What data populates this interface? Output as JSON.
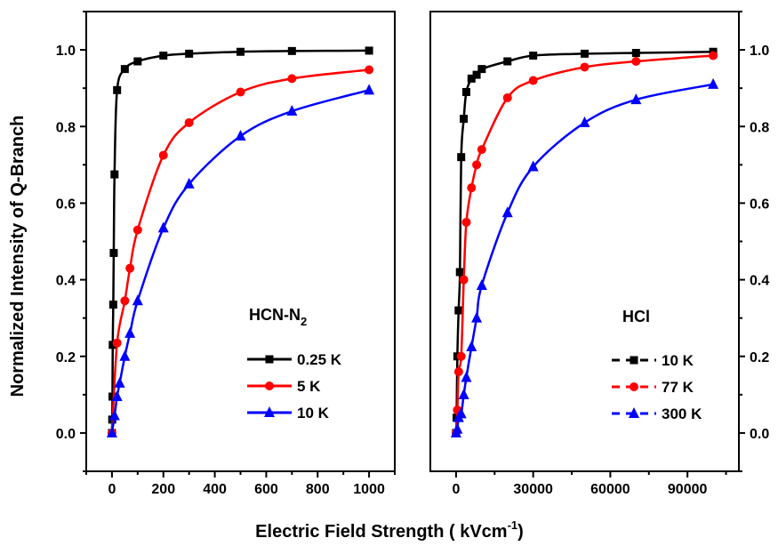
{
  "chart_data": [
    {
      "type": "line",
      "panel_label": "HCN-N",
      "panel_label_sub": "2",
      "xlabel": "",
      "ylabel": "Normalized Intensity of Q-Branch",
      "xlim": [
        -100,
        1100
      ],
      "ylim": [
        -0.1,
        1.1
      ],
      "x_ticks": [
        0,
        200,
        400,
        600,
        800,
        1000
      ],
      "x_tick_labels": [
        "0",
        "200",
        "400",
        "600",
        "800",
        "1000"
      ],
      "y_ticks": [
        0.0,
        0.2,
        0.4,
        0.6,
        0.8,
        1.0
      ],
      "y_tick_labels": [
        "0.0",
        "0.2",
        "0.4",
        "0.6",
        "0.8",
        "1.0"
      ],
      "legend_position": "lower-right",
      "series": [
        {
          "name": "0.25 K",
          "color": "#000000",
          "marker": "square",
          "line": "solid",
          "x": [
            0,
            1,
            2,
            3,
            5,
            7,
            10,
            20,
            50,
            100,
            200,
            300,
            500,
            700,
            1000
          ],
          "y": [
            0.0,
            0.035,
            0.095,
            0.23,
            0.335,
            0.47,
            0.675,
            0.895,
            0.95,
            0.97,
            0.985,
            0.99,
            0.995,
            0.997,
            0.998
          ]
        },
        {
          "name": "5 K",
          "color": "#ff0000",
          "marker": "circle",
          "line": "solid",
          "x": [
            0,
            20,
            50,
            70,
            100,
            200,
            300,
            500,
            700,
            1000
          ],
          "y": [
            0.0,
            0.235,
            0.345,
            0.43,
            0.53,
            0.725,
            0.81,
            0.89,
            0.925,
            0.948
          ]
        },
        {
          "name": "10 K",
          "color": "#0000ff",
          "marker": "triangle",
          "line": "solid",
          "x": [
            0,
            10,
            20,
            30,
            50,
            70,
            100,
            200,
            300,
            500,
            700,
            1000
          ],
          "y": [
            0.0,
            0.045,
            0.095,
            0.13,
            0.2,
            0.26,
            0.345,
            0.535,
            0.65,
            0.775,
            0.84,
            0.895
          ]
        }
      ]
    },
    {
      "type": "line",
      "panel_label": "HCl",
      "xlabel": "",
      "ylabel": "",
      "xlim": [
        -10000,
        110000
      ],
      "ylim": [
        -0.1,
        1.1
      ],
      "x_ticks": [
        0,
        30000,
        60000,
        90000
      ],
      "x_tick_labels": [
        "0",
        "30000",
        "60000",
        "90000"
      ],
      "y_ticks": [
        0.0,
        0.2,
        0.4,
        0.6,
        0.8,
        1.0
      ],
      "y_tick_labels": [
        "0.0",
        "0.2",
        "0.4",
        "0.6",
        "0.8",
        "1.0"
      ],
      "legend_position": "lower-right",
      "series": [
        {
          "name": "10 K",
          "color": "#000000",
          "marker": "square",
          "line": "solid",
          "x": [
            0,
            200,
            500,
            1000,
            1500,
            2000,
            3000,
            4000,
            6000,
            8000,
            10000,
            20000,
            30000,
            50000,
            70000,
            100000
          ],
          "y": [
            0.0,
            0.04,
            0.2,
            0.32,
            0.42,
            0.72,
            0.82,
            0.89,
            0.925,
            0.935,
            0.95,
            0.97,
            0.985,
            0.99,
            0.992,
            0.995
          ]
        },
        {
          "name": "77 K",
          "color": "#ff0000",
          "marker": "circle",
          "line": "solid",
          "x": [
            0,
            500,
            1000,
            2000,
            3000,
            4000,
            6000,
            8000,
            10000,
            20000,
            30000,
            50000,
            70000,
            100000
          ],
          "y": [
            0.0,
            0.06,
            0.16,
            0.2,
            0.4,
            0.55,
            0.64,
            0.7,
            0.74,
            0.875,
            0.92,
            0.955,
            0.97,
            0.985
          ]
        },
        {
          "name": "300 K",
          "color": "#0000ff",
          "marker": "triangle",
          "line": "solid",
          "x": [
            0,
            500,
            1000,
            2000,
            3000,
            4000,
            6000,
            8000,
            10000,
            20000,
            30000,
            50000,
            70000,
            100000
          ],
          "y": [
            0.0,
            0.01,
            0.04,
            0.05,
            0.1,
            0.145,
            0.225,
            0.3,
            0.385,
            0.575,
            0.695,
            0.81,
            0.87,
            0.91
          ]
        }
      ]
    }
  ],
  "shared_xlabel_main": "Electric Field Strength ( kVcm",
  "shared_xlabel_sup": "-1",
  "shared_xlabel_end": ")"
}
